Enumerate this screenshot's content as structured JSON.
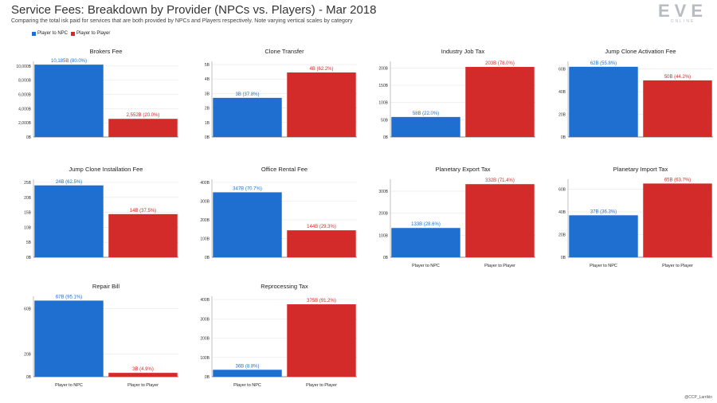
{
  "header": {
    "title": "Service Fees: Breakdown by Provider (NPCs vs. Players) - Mar 2018",
    "subtitle": "Comparing the total isk paid for services that are both provided by NPCs and Players respectively. Note varying vertical scales by category"
  },
  "legend": [
    {
      "label": "Player to NPC",
      "color": "#1f6fd1"
    },
    {
      "label": "Player to Player",
      "color": "#d32a2a"
    }
  ],
  "logo": {
    "main": "EVE",
    "sub": "ONLINE"
  },
  "credit": "@CCP_Larrikin",
  "colors": {
    "npc": "#1f6fd1",
    "player": "#d32a2a",
    "axis": "#999999",
    "grid": "#e6e6e6"
  },
  "chart_data": [
    {
      "type": "bar",
      "title": "Brokers Fee",
      "categories": [
        "Player to NPC",
        "Player to Player"
      ],
      "values": [
        10185,
        2552
      ],
      "data_labels": [
        "10,185B (80.0%)",
        "2,552B (20.0%)"
      ],
      "yticks": [
        0,
        2000,
        4000,
        6000,
        8000,
        10000
      ],
      "ytick_labels": [
        "0B",
        "2,000B",
        "4,000B",
        "6,000B",
        "8,000B",
        "10,000B"
      ],
      "ylim": [
        0,
        10200
      ],
      "show_xlabels": false
    },
    {
      "type": "bar",
      "title": "Clone Transfer",
      "categories": [
        "Player to NPC",
        "Player to Player"
      ],
      "values": [
        2.7,
        4.45
      ],
      "data_labels": [
        "3B (37.8%)",
        "4B (62.2%)"
      ],
      "yticks": [
        0,
        1,
        2,
        3,
        4,
        5
      ],
      "ytick_labels": [
        "0B",
        "1B",
        "2B",
        "3B",
        "4B",
        "5B"
      ],
      "ylim": [
        0,
        5
      ],
      "show_xlabels": false
    },
    {
      "type": "bar",
      "title": "Industry Job Tax",
      "categories": [
        "Player to NPC",
        "Player to Player"
      ],
      "values": [
        58,
        203
      ],
      "data_labels": [
        "58B (22.0%)",
        "203B (78.0%)"
      ],
      "yticks": [
        0,
        50,
        100,
        150,
        200
      ],
      "ytick_labels": [
        "0B",
        "50B",
        "100B",
        "150B",
        "200B"
      ],
      "ylim": [
        0,
        210
      ],
      "show_xlabels": false
    },
    {
      "type": "bar",
      "title": "Jump Clone Activation Fee",
      "categories": [
        "Player to NPC",
        "Player to Player"
      ],
      "values": [
        62,
        50
      ],
      "data_labels": [
        "62B (55.8%)",
        "50B (44.2%)"
      ],
      "yticks": [
        0,
        20,
        40,
        60
      ],
      "ytick_labels": [
        "0B",
        "20B",
        "40B",
        "60B"
      ],
      "ylim": [
        0,
        64
      ],
      "show_xlabels": false
    },
    {
      "type": "bar",
      "title": "Jump Clone Installation Fee",
      "categories": [
        "Player to NPC",
        "Player to Player"
      ],
      "values": [
        24,
        14.4
      ],
      "data_labels": [
        "24B (62.5%)",
        "14B (37.5%)"
      ],
      "yticks": [
        0,
        5,
        10,
        15,
        20,
        25
      ],
      "ytick_labels": [
        "0B",
        "5B",
        "10B",
        "15B",
        "20B",
        "25B"
      ],
      "ylim": [
        0,
        25
      ],
      "show_xlabels": false
    },
    {
      "type": "bar",
      "title": "Office Rental Fee",
      "categories": [
        "Player to NPC",
        "Player to Player"
      ],
      "values": [
        347,
        144
      ],
      "data_labels": [
        "347B (70.7%)",
        "144B (29.3%)"
      ],
      "yticks": [
        0,
        100,
        200,
        300,
        400
      ],
      "ytick_labels": [
        "0B",
        "100B",
        "200B",
        "300B",
        "400B"
      ],
      "ylim": [
        0,
        400
      ],
      "show_xlabels": false
    },
    {
      "type": "bar",
      "title": "Planetary Export Tax",
      "categories": [
        "Player to NPC",
        "Player to Player"
      ],
      "values": [
        133,
        332
      ],
      "data_labels": [
        "133B (28.6%)",
        "332B (71.4%)"
      ],
      "yticks": [
        0,
        100,
        200,
        300
      ],
      "ytick_labels": [
        "0B",
        "100B",
        "200B",
        "300B"
      ],
      "ylim": [
        0,
        340
      ],
      "show_xlabels": true
    },
    {
      "type": "bar",
      "title": "Planetary Import Tax",
      "categories": [
        "Player to NPC",
        "Player to Player"
      ],
      "values": [
        37,
        65
      ],
      "data_labels": [
        "37B (36.3%)",
        "65B (63.7%)"
      ],
      "yticks": [
        0,
        20,
        40,
        60
      ],
      "ytick_labels": [
        "0B",
        "20B",
        "40B",
        "60B"
      ],
      "ylim": [
        0,
        66
      ],
      "show_xlabels": true
    },
    {
      "type": "bar",
      "title": "Repair Bill",
      "categories": [
        "Player to NPC",
        "Player to Player"
      ],
      "values": [
        67,
        3.4
      ],
      "data_labels": [
        "67B (95.1%)",
        "3B (4.9%)"
      ],
      "yticks": [
        0,
        20,
        60
      ],
      "ytick_labels": [
        "0B",
        "20B",
        "60B"
      ],
      "ylim": [
        0,
        68
      ],
      "show_xlabels": true
    },
    {
      "type": "bar",
      "title": "Reprocessing Tax",
      "categories": [
        "Player to NPC",
        "Player to Player"
      ],
      "values": [
        36,
        375
      ],
      "data_labels": [
        "36B (8.8%)",
        "375B (91.2%)"
      ],
      "yticks": [
        0,
        100,
        200,
        300,
        400
      ],
      "ytick_labels": [
        "0B",
        "100B",
        "200B",
        "300B",
        "400B"
      ],
      "ylim": [
        0,
        400
      ],
      "show_xlabels": true
    }
  ]
}
